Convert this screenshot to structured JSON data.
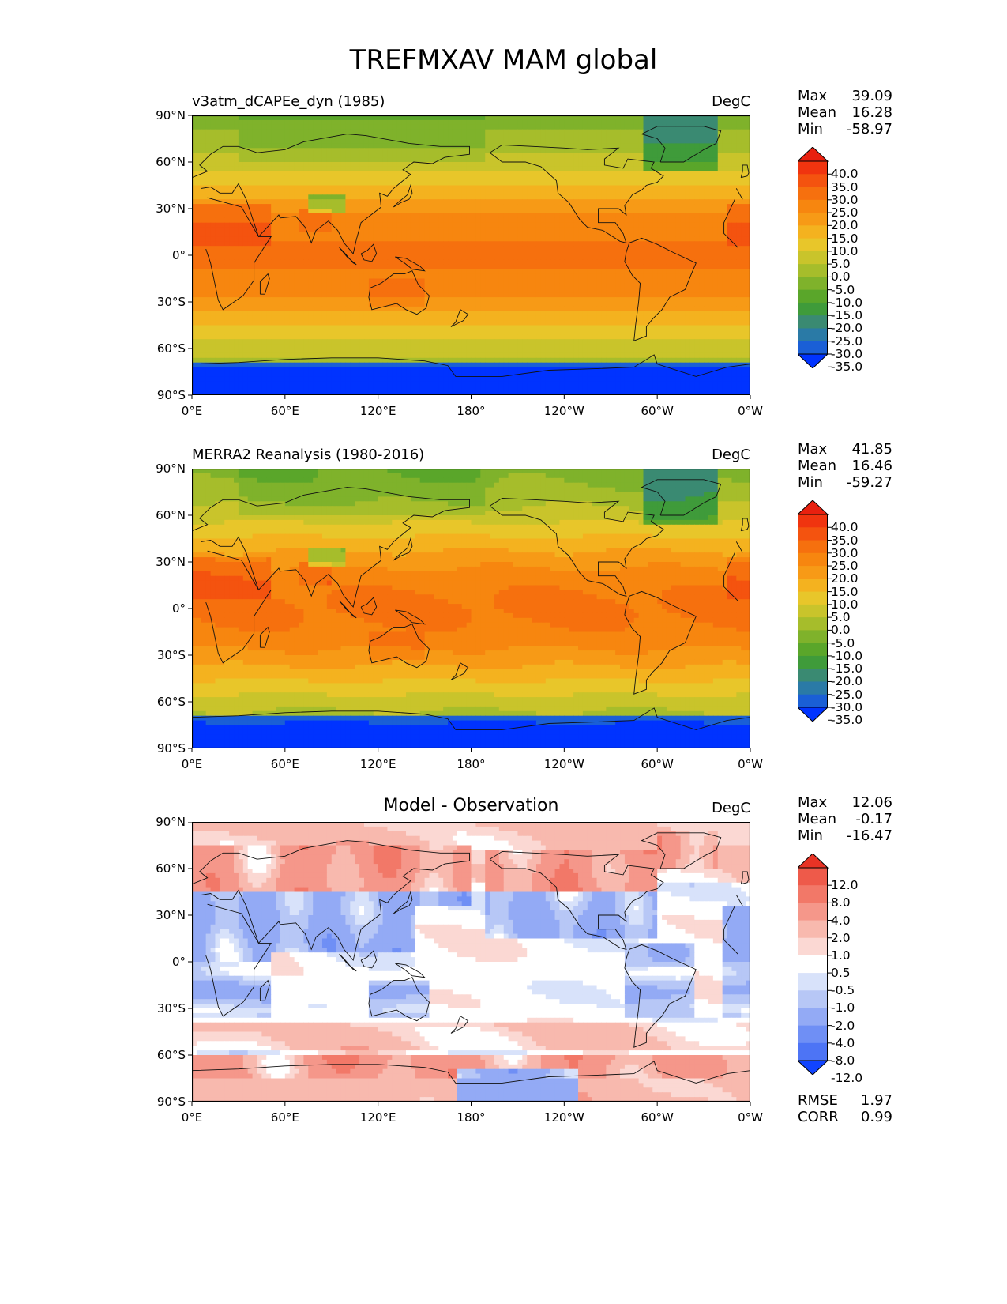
{
  "figure_title": "TREFMXAV MAM global",
  "colors": {
    "full_levels": [
      "#0033ff",
      "#1a5fd6",
      "#2a7aa6",
      "#3a8a72",
      "#3f9b3a",
      "#5aa62a",
      "#7fb22b",
      "#a6bd2b",
      "#c9c42b",
      "#e8c62a",
      "#f4b21f",
      "#f79a16",
      "#f7860f",
      "#f6700e",
      "#f4530f",
      "#f0340f",
      "#e8200f"
    ],
    "diff_levels": [
      "#1144ff",
      "#4d74f5",
      "#6f8ff5",
      "#93aaf5",
      "#b7c7f6",
      "#d8e2fa",
      "#ffffff",
      "#fbd8d3",
      "#f8b9ae",
      "#f5978a",
      "#f27868",
      "#ee5a4a",
      "#e83325"
    ]
  },
  "stats_labels": {
    "max": "Max",
    "mean": "Mean",
    "min": "Min",
    "rmse": "RMSE",
    "corr": "CORR"
  },
  "units": "DegC",
  "panels": [
    {
      "id": "model",
      "title": "v3atm_dCAPEe_dyn (1985)",
      "title_style": "left",
      "stats": {
        "max": "39.09",
        "mean": "16.28",
        "min": "-58.97"
      }
    },
    {
      "id": "obs",
      "title": "MERRA2 Reanalysis (1980-2016)",
      "title_style": "left",
      "stats": {
        "max": "41.85",
        "mean": "16.46",
        "min": "-59.27"
      }
    },
    {
      "id": "diff",
      "title": "Model - Observation",
      "title_style": "center",
      "stats": {
        "max": "12.06",
        "mean": "-0.17",
        "min": "-16.47"
      },
      "rmse": "1.97",
      "corr": "0.99"
    }
  ],
  "chart_data": [
    {
      "type": "heatmap",
      "title": "v3atm_dCAPEe_dyn (1985)",
      "variable": "TREFMXAV",
      "season": "MAM",
      "units": "DegC",
      "x_ticks": [
        "0°E",
        "60°E",
        "120°E",
        "180°",
        "120°W",
        "60°W",
        "0°W"
      ],
      "y_ticks": [
        "90°N",
        "60°N",
        "30°N",
        "0°",
        "30°S",
        "60°S",
        "90°S"
      ],
      "xlim": [
        0,
        360
      ],
      "ylim": [
        -90,
        90
      ],
      "colorbar_levels": [
        "40.0",
        "35.0",
        "30.0",
        "25.0",
        "20.0",
        "15.0",
        "10.0",
        "5.0",
        "0.0",
        "-5.0",
        "-10.0",
        "-15.0",
        "-20.0",
        "-25.0",
        "-30.0",
        "-35.0"
      ],
      "stats": {
        "max": 39.09,
        "mean": 16.28,
        "min": -58.97
      }
    },
    {
      "type": "heatmap",
      "title": "MERRA2 Reanalysis (1980-2016)",
      "variable": "TREFMXAV",
      "season": "MAM",
      "units": "DegC",
      "x_ticks": [
        "0°E",
        "60°E",
        "120°E",
        "180°",
        "120°W",
        "60°W",
        "0°W"
      ],
      "y_ticks": [
        "90°N",
        "60°N",
        "30°N",
        "0°",
        "30°S",
        "60°S",
        "90°S"
      ],
      "xlim": [
        0,
        360
      ],
      "ylim": [
        -90,
        90
      ],
      "colorbar_levels": [
        "40.0",
        "35.0",
        "30.0",
        "25.0",
        "20.0",
        "15.0",
        "10.0",
        "5.0",
        "0.0",
        "-5.0",
        "-10.0",
        "-15.0",
        "-20.0",
        "-25.0",
        "-30.0",
        "-35.0"
      ],
      "stats": {
        "max": 41.85,
        "mean": 16.46,
        "min": -59.27
      }
    },
    {
      "type": "heatmap",
      "title": "Model - Observation",
      "variable": "TREFMXAV",
      "season": "MAM",
      "units": "DegC",
      "x_ticks": [
        "0°E",
        "60°E",
        "120°E",
        "180°",
        "120°W",
        "60°W",
        "0°W"
      ],
      "y_ticks": [
        "90°N",
        "60°N",
        "30°N",
        "0°",
        "30°S",
        "60°S",
        "90°S"
      ],
      "xlim": [
        0,
        360
      ],
      "ylim": [
        -90,
        90
      ],
      "colorbar_levels": [
        "12.0",
        "8.0",
        "4.0",
        "2.0",
        "1.0",
        "0.5",
        "-0.5",
        "-1.0",
        "-2.0",
        "-4.0",
        "-8.0",
        "-12.0"
      ],
      "stats": {
        "max": 12.06,
        "mean": -0.17,
        "min": -16.47
      },
      "rmse": 1.97,
      "corr": 0.99
    }
  ]
}
